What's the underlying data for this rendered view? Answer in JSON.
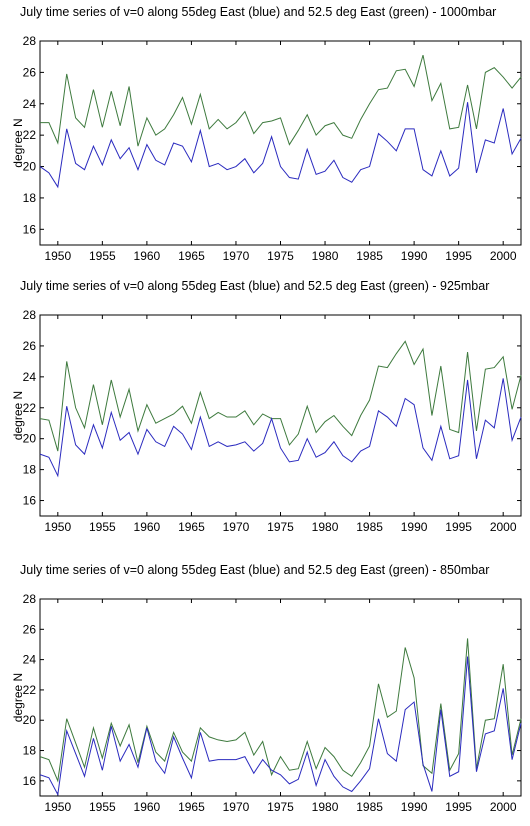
{
  "chart_data": [
    {
      "type": "line",
      "title": "July time series of v=0 along 55deg East (blue) and 52.5 deg East (green) - 1000mbar",
      "xlabel": "",
      "ylabel": "degree N",
      "xlim": [
        1948,
        2002
      ],
      "ylim": [
        15,
        28
      ],
      "xticks": [
        1950,
        1955,
        1960,
        1965,
        1970,
        1975,
        1980,
        1985,
        1990,
        1995,
        2000
      ],
      "yticks": [
        16,
        18,
        20,
        22,
        24,
        26,
        28
      ],
      "grid": false,
      "x": [
        1948,
        1949,
        1950,
        1951,
        1952,
        1953,
        1954,
        1955,
        1956,
        1957,
        1958,
        1959,
        1960,
        1961,
        1962,
        1963,
        1964,
        1965,
        1966,
        1967,
        1968,
        1969,
        1970,
        1971,
        1972,
        1973,
        1974,
        1975,
        1976,
        1977,
        1978,
        1979,
        1980,
        1981,
        1982,
        1983,
        1984,
        1985,
        1986,
        1987,
        1988,
        1989,
        1990,
        1991,
        1992,
        1993,
        1994,
        1995,
        1996,
        1997,
        1998,
        1999,
        2000,
        2001,
        2002
      ],
      "series": [
        {
          "color": "#2b2bbf",
          "values": [
            20.0,
            19.6,
            18.7,
            22.4,
            20.2,
            19.8,
            21.3,
            20.1,
            21.7,
            20.5,
            21.2,
            19.8,
            21.4,
            20.4,
            20.1,
            21.5,
            21.3,
            20.3,
            22.3,
            20.0,
            20.2,
            19.8,
            20.0,
            20.5,
            19.6,
            20.2,
            21.9,
            20.0,
            19.3,
            19.2,
            21.1,
            19.5,
            19.7,
            20.4,
            19.3,
            19.0,
            19.8,
            20.0,
            22.1,
            21.6,
            21.0,
            22.4,
            22.4,
            19.8,
            19.4,
            21.0,
            19.4,
            19.9,
            24.1,
            19.6,
            21.7,
            21.5,
            23.7,
            20.8,
            21.8
          ]
        },
        {
          "color": "#3e7a3e",
          "values": [
            22.8,
            22.8,
            21.5,
            25.9,
            23.1,
            22.5,
            24.9,
            22.5,
            24.8,
            22.6,
            25.1,
            21.3,
            23.1,
            22.0,
            22.4,
            23.3,
            24.4,
            22.7,
            24.6,
            22.4,
            23.0,
            22.4,
            22.8,
            23.5,
            22.1,
            22.8,
            22.9,
            23.1,
            21.4,
            22.3,
            23.3,
            22.0,
            22.6,
            22.8,
            22.0,
            21.8,
            23.0,
            24.0,
            24.9,
            25.0,
            26.1,
            26.2,
            25.1,
            27.1,
            24.2,
            25.3,
            22.4,
            22.5,
            25.2,
            22.4,
            26.0,
            26.3,
            25.7,
            25.0,
            25.7
          ]
        }
      ]
    },
    {
      "type": "line",
      "title": "July time series of v=0 along 55deg East (blue) and 52.5 deg East (green) - 925mbar",
      "xlabel": "",
      "ylabel": "degree N",
      "xlim": [
        1948,
        2002
      ],
      "ylim": [
        15,
        28
      ],
      "xticks": [
        1950,
        1955,
        1960,
        1965,
        1970,
        1975,
        1980,
        1985,
        1990,
        1995,
        2000
      ],
      "yticks": [
        16,
        18,
        20,
        22,
        24,
        26,
        28
      ],
      "grid": false,
      "x": [
        1948,
        1949,
        1950,
        1951,
        1952,
        1953,
        1954,
        1955,
        1956,
        1957,
        1958,
        1959,
        1960,
        1961,
        1962,
        1963,
        1964,
        1965,
        1966,
        1967,
        1968,
        1969,
        1970,
        1971,
        1972,
        1973,
        1974,
        1975,
        1976,
        1977,
        1978,
        1979,
        1980,
        1981,
        1982,
        1983,
        1984,
        1985,
        1986,
        1987,
        1988,
        1989,
        1990,
        1991,
        1992,
        1993,
        1994,
        1995,
        1996,
        1997,
        1998,
        1999,
        2000,
        2001,
        2002
      ],
      "series": [
        {
          "color": "#2b2bbf",
          "values": [
            19.0,
            18.8,
            17.6,
            22.1,
            19.6,
            19.0,
            20.9,
            19.4,
            21.7,
            19.9,
            20.4,
            19.0,
            20.6,
            19.8,
            19.5,
            20.8,
            20.3,
            19.3,
            21.4,
            19.5,
            19.8,
            19.5,
            19.6,
            19.8,
            19.2,
            19.7,
            21.3,
            19.4,
            18.5,
            18.6,
            20.0,
            18.8,
            19.1,
            19.8,
            18.9,
            18.5,
            19.2,
            19.5,
            21.8,
            21.4,
            20.8,
            22.6,
            22.2,
            19.4,
            18.6,
            20.8,
            18.7,
            18.9,
            23.8,
            18.7,
            21.2,
            20.7,
            23.9,
            19.9,
            21.4
          ]
        },
        {
          "color": "#3e7a3e",
          "values": [
            21.3,
            21.2,
            19.2,
            25.0,
            22.0,
            20.7,
            23.5,
            20.9,
            23.8,
            21.4,
            23.2,
            20.5,
            22.2,
            21.0,
            21.3,
            21.6,
            22.1,
            21.0,
            23.0,
            21.3,
            21.7,
            21.4,
            21.4,
            21.8,
            20.9,
            21.6,
            21.3,
            21.3,
            19.6,
            20.3,
            22.1,
            20.4,
            21.1,
            21.5,
            20.8,
            20.2,
            21.5,
            22.5,
            24.7,
            24.6,
            25.5,
            26.3,
            24.8,
            25.8,
            21.5,
            24.7,
            20.6,
            20.4,
            25.6,
            20.5,
            24.5,
            24.6,
            25.3,
            21.9,
            24.1
          ]
        }
      ]
    },
    {
      "type": "line",
      "title": "July time series of v=0 along 55deg East (blue) and 52.5 deg East (green) - 850mbar",
      "xlabel": "",
      "ylabel": "degree N",
      "xlim": [
        1948,
        2002
      ],
      "ylim": [
        15,
        28
      ],
      "xticks": [
        1950,
        1955,
        1960,
        1965,
        1970,
        1975,
        1980,
        1985,
        1990,
        1995,
        2000
      ],
      "yticks": [
        16,
        18,
        20,
        22,
        24,
        26,
        28
      ],
      "grid": false,
      "x": [
        1948,
        1949,
        1950,
        1951,
        1952,
        1953,
        1954,
        1955,
        1956,
        1957,
        1958,
        1959,
        1960,
        1961,
        1962,
        1963,
        1964,
        1965,
        1966,
        1967,
        1968,
        1969,
        1970,
        1971,
        1972,
        1973,
        1974,
        1975,
        1976,
        1977,
        1978,
        1979,
        1980,
        1981,
        1982,
        1983,
        1984,
        1985,
        1986,
        1987,
        1988,
        1989,
        1990,
        1991,
        1992,
        1993,
        1994,
        1995,
        1996,
        1997,
        1998,
        1999,
        2000,
        2001,
        2002
      ],
      "series": [
        {
          "color": "#2b2bbf",
          "values": [
            16.4,
            16.2,
            15.1,
            19.3,
            17.8,
            16.3,
            18.8,
            16.7,
            19.6,
            17.3,
            18.4,
            16.9,
            19.5,
            17.3,
            16.5,
            18.9,
            17.5,
            16.2,
            19.2,
            17.3,
            17.4,
            17.4,
            17.4,
            17.6,
            16.5,
            17.4,
            16.7,
            16.4,
            15.8,
            16.1,
            17.9,
            15.7,
            17.4,
            16.3,
            15.6,
            15.3,
            16.0,
            16.8,
            20.1,
            17.8,
            17.3,
            20.7,
            21.2,
            17.1,
            15.3,
            20.7,
            16.3,
            16.6,
            24.2,
            16.6,
            19.1,
            19.3,
            22.1,
            17.4,
            19.8
          ]
        },
        {
          "color": "#3e7a3e",
          "values": [
            17.6,
            17.4,
            16.0,
            20.1,
            18.5,
            16.9,
            19.5,
            17.5,
            19.8,
            18.3,
            19.7,
            17.2,
            19.6,
            17.9,
            17.3,
            19.2,
            17.9,
            17.3,
            19.5,
            18.9,
            18.7,
            18.6,
            18.7,
            19.2,
            17.7,
            18.6,
            16.4,
            17.6,
            16.7,
            16.8,
            18.6,
            16.8,
            18.2,
            17.6,
            16.7,
            16.3,
            17.2,
            18.3,
            22.4,
            20.2,
            20.6,
            24.8,
            22.8,
            17.0,
            16.5,
            21.1,
            16.7,
            17.8,
            25.4,
            16.8,
            20.0,
            20.1,
            23.7,
            17.7,
            20.1
          ]
        }
      ]
    }
  ]
}
